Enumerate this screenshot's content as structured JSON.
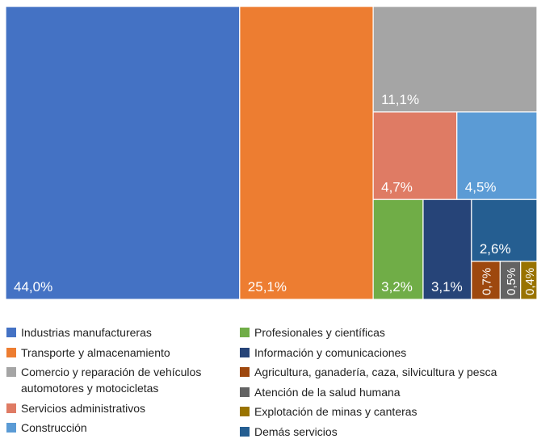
{
  "chart_data": {
    "type": "treemap",
    "categories": [
      "Industrias manufactureras",
      "Transporte y almacenamiento",
      "Comercio y reparación de vehículos automotores y motocicletas",
      "Servicios administrativos",
      "Construcción",
      "Profesionales y científicas",
      "Información y comunicaciones",
      "Agricultura, ganadería, caza, silvicultura y pesca",
      "Atención de la salud humana",
      "Explotación de minas y canteras",
      "Demás servicios"
    ],
    "values": [
      44.0,
      25.1,
      11.1,
      4.7,
      4.5,
      3.2,
      3.1,
      0.7,
      0.5,
      0.4,
      2.6
    ],
    "value_labels": [
      "44,0%",
      "25,1%",
      "11,1%",
      "4,7%",
      "4,5%",
      "3,2%",
      "3,1%",
      "0,7%",
      "0,5%",
      "0,4%",
      "2,6%"
    ],
    "colors": [
      "#4472c4",
      "#ed7d31",
      "#a5a5a5",
      "#df7b64",
      "#5b9bd5",
      "#70ad47",
      "#264478",
      "#9e480e",
      "#636363",
      "#997300",
      "#255e91"
    ],
    "legend": "bottom"
  }
}
